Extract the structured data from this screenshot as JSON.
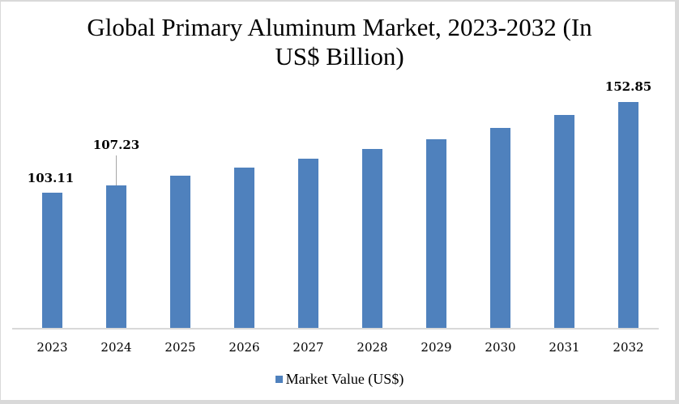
{
  "chart_data": {
    "type": "bar",
    "title": "Global Primary Aluminum Market, 2023-2032 (In US$ Billion)",
    "title_lines": [
      "Global Primary Aluminum Market, 2023-2032 (In",
      "US$ Billion)"
    ],
    "categories": [
      "2023",
      "2024",
      "2025",
      "2026",
      "2027",
      "2028",
      "2029",
      "2030",
      "2031",
      "2032"
    ],
    "series": [
      {
        "name": "Market Value (US$)",
        "color": "#4f81bd",
        "values": [
          103.11,
          107.23,
          112.5,
          116.9,
          121.8,
          127.1,
          132.5,
          138.7,
          145.8,
          152.85
        ]
      }
    ],
    "data_labels": {
      "2023": "103.11",
      "2024": "107.23",
      "2032": "152.85"
    },
    "xlabel": "",
    "ylabel": "",
    "y_axis_visible": false,
    "grid": false,
    "legend_position": "bottom"
  },
  "legend": {
    "label": "Market Value (US$)"
  }
}
